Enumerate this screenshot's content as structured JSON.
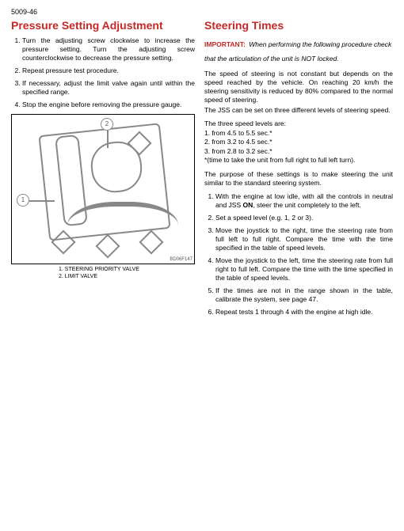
{
  "page_number": "5009-46",
  "left": {
    "title": "Pressure Setting Adjustment",
    "steps": [
      "Turn the adjusting screw clockwise to increase the pressure setting. Turn the adjusting screw counterclockwise to decrease the pressure setting.",
      "Repeat pressure test procedure.",
      "If necessary, adjust the limit valve again until within the specified range.",
      "Stop the engine before removing the pressure gauge."
    ],
    "figure": {
      "callout_1": "1",
      "callout_2": "2",
      "ref": "BD06F147",
      "caption_1": "1. STEERING PRIORITY VALVE",
      "caption_2": "2. LIMIT VALVE"
    }
  },
  "right": {
    "title": "Steering Times",
    "important_label": "IMPORTANT:",
    "important_text": "When performing the following procedure check that the articulation of the unit is NOT locked.",
    "para_speed": "The speed of steering is not constant but depends on the speed reached by the vehicle. On reaching 20 km/h the steering sensitivity is reduced by 80% compared to the normal speed of steering.",
    "para_jss": "The JSS can be set on three different levels of steering speed.",
    "levels_intro": "The three speed levels are:",
    "levels": [
      "1. from 4.5 to 5.5 sec.*",
      "2. from 3.2 to 4.5 sec.*",
      "3. from 2.8 to 3.2 sec.*"
    ],
    "levels_note": "*(time to take the unit from full right to full left turn).",
    "para_purpose": "The purpose of these settings is to make steering the unit similar to the standard steering system.",
    "steps": [
      "With the engine at low idle, with all the controls in neutral and JSS <b>ON</b>, steer the unit completely to the left.",
      "Set a speed level (e.g. 1, 2 or 3).",
      "Move the joystick to the right, time the steering rate from full left to full right. Compare the time with the time specified in the table of speed levels.",
      "Move the joystick to the left, time the steering rate from full right to full left. Compare the time with the time specified in the table of speed levels.",
      "If the times are not in the range shown in the table, calibrate the system, see page 47.",
      "Repeat tests 1 through 4 with the engine at high idle."
    ]
  },
  "colors": {
    "accent": "#c62828",
    "text": "#000000",
    "figure_line": "#888888"
  }
}
